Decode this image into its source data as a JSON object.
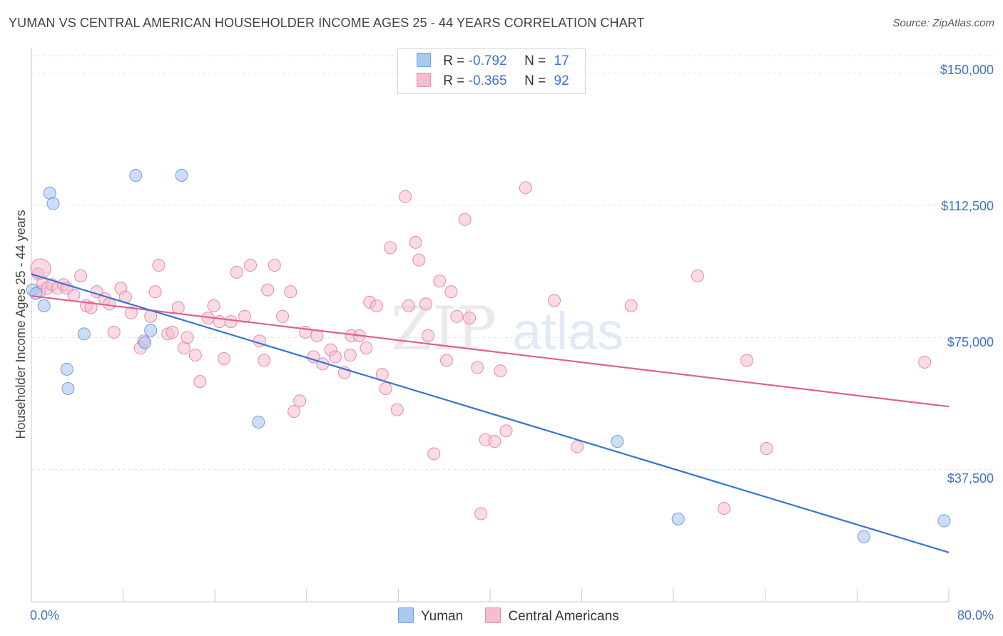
{
  "title": "YUMAN VS CENTRAL AMERICAN HOUSEHOLDER INCOME AGES 25 - 44 YEARS CORRELATION CHART",
  "source": "Source: ZipAtlas.com",
  "watermark": {
    "zip": "ZIP",
    "atlas": "atlas"
  },
  "legend": {
    "r_label": "R =",
    "n_label": "N =",
    "yuman": {
      "r": "-0.792",
      "n": "17"
    },
    "central": {
      "r": "-0.365",
      "n": "92"
    }
  },
  "bottom_legend": {
    "yuman": "Yuman",
    "central": "Central Americans"
  },
  "colors": {
    "yuman_fill": "#aac8f0",
    "yuman_stroke": "#6f9fdc",
    "yuman_line": "#3874d0",
    "central_fill": "#f6bcd0",
    "central_stroke": "#e88aa8",
    "central_line": "#e0608c",
    "tick_text": "#3f73c8",
    "grid": "#e4e4e4"
  },
  "chart_data": {
    "type": "scatter",
    "xlabel": "",
    "ylabel": "Householder Income Ages 25 - 44 years",
    "x_tick_labels": [
      "0.0%",
      "80.0%"
    ],
    "y_tick_labels": [
      "$37,500",
      "$75,000",
      "$112,500",
      "$150,000"
    ],
    "xlim": [
      0,
      80
    ],
    "ylim": [
      0,
      155000
    ],
    "y_ticks": [
      37500,
      75000,
      112500,
      150000
    ],
    "grid": true,
    "legend_position": "top-center",
    "series": [
      {
        "name": "Yuman",
        "r": -0.792,
        "n": 17,
        "trend": {
          "x": [
            0,
            80
          ],
          "y": [
            93000,
            14000
          ]
        },
        "points": [
          [
            0.1,
            88500
          ],
          [
            0.4,
            87500
          ],
          [
            1.1,
            84000
          ],
          [
            1.6,
            116000
          ],
          [
            1.9,
            113000
          ],
          [
            3.1,
            66000
          ],
          [
            3.2,
            60500
          ],
          [
            4.6,
            76000
          ],
          [
            9.1,
            121000
          ],
          [
            9.9,
            73500
          ],
          [
            10.4,
            77000
          ],
          [
            13.1,
            121000
          ],
          [
            19.8,
            51000
          ],
          [
            51.1,
            45500
          ],
          [
            56.4,
            23500
          ],
          [
            72.6,
            18500
          ],
          [
            79.6,
            23000
          ]
        ]
      },
      {
        "name": "Central Americans",
        "r": -0.365,
        "n": 92,
        "trend": {
          "x": [
            0,
            80
          ],
          "y": [
            86800,
            55400
          ]
        },
        "points": [
          [
            0.6,
            93000
          ],
          [
            0.7,
            88000
          ],
          [
            1.0,
            90500
          ],
          [
            1.4,
            89000
          ],
          [
            1.8,
            90000
          ],
          [
            2.3,
            89000
          ],
          [
            2.8,
            90000
          ],
          [
            3.1,
            89000
          ],
          [
            3.7,
            87000
          ],
          [
            4.3,
            92500
          ],
          [
            4.8,
            84000
          ],
          [
            5.2,
            83500
          ],
          [
            5.7,
            88000
          ],
          [
            6.4,
            86000
          ],
          [
            6.8,
            84500
          ],
          [
            7.2,
            76500
          ],
          [
            7.8,
            89000
          ],
          [
            8.2,
            86500
          ],
          [
            8.7,
            82000
          ],
          [
            9.5,
            72000
          ],
          [
            9.8,
            74000
          ],
          [
            10.4,
            81000
          ],
          [
            10.8,
            88000
          ],
          [
            11.1,
            95500
          ],
          [
            11.9,
            76000
          ],
          [
            12.3,
            76500
          ],
          [
            12.8,
            83500
          ],
          [
            13.3,
            72000
          ],
          [
            13.6,
            75000
          ],
          [
            14.3,
            70000
          ],
          [
            14.7,
            62500
          ],
          [
            15.4,
            80500
          ],
          [
            15.9,
            84000
          ],
          [
            16.4,
            79500
          ],
          [
            16.8,
            69000
          ],
          [
            17.4,
            79500
          ],
          [
            17.9,
            93500
          ],
          [
            18.6,
            81000
          ],
          [
            19.1,
            95500
          ],
          [
            19.9,
            74000
          ],
          [
            20.3,
            68500
          ],
          [
            20.6,
            88500
          ],
          [
            21.2,
            95500
          ],
          [
            21.9,
            81000
          ],
          [
            22.6,
            88000
          ],
          [
            22.9,
            54000
          ],
          [
            23.4,
            57000
          ],
          [
            23.9,
            76500
          ],
          [
            24.6,
            69500
          ],
          [
            24.9,
            75500
          ],
          [
            25.4,
            67500
          ],
          [
            26.1,
            71500
          ],
          [
            26.5,
            69500
          ],
          [
            27.3,
            65000
          ],
          [
            27.8,
            70000
          ],
          [
            27.9,
            75500
          ],
          [
            28.6,
            75500
          ],
          [
            29.2,
            72000
          ],
          [
            29.5,
            85000
          ],
          [
            30.1,
            84000
          ],
          [
            30.6,
            64500
          ],
          [
            30.9,
            60500
          ],
          [
            31.3,
            100500
          ],
          [
            31.9,
            54500
          ],
          [
            32.6,
            115000
          ],
          [
            32.9,
            84000
          ],
          [
            33.5,
            102000
          ],
          [
            33.8,
            97000
          ],
          [
            34.4,
            84500
          ],
          [
            34.6,
            75500
          ],
          [
            35.1,
            42000
          ],
          [
            35.6,
            91000
          ],
          [
            36.2,
            68500
          ],
          [
            36.6,
            88000
          ],
          [
            37.1,
            81000
          ],
          [
            37.8,
            108500
          ],
          [
            38.2,
            80500
          ],
          [
            38.9,
            66500
          ],
          [
            39.2,
            25000
          ],
          [
            39.6,
            46000
          ],
          [
            40.4,
            45500
          ],
          [
            40.9,
            65500
          ],
          [
            41.4,
            48500
          ],
          [
            43.1,
            117500
          ],
          [
            45.6,
            85500
          ],
          [
            47.6,
            44000
          ],
          [
            52.3,
            84000
          ],
          [
            58.1,
            92500
          ],
          [
            60.4,
            26500
          ],
          [
            62.4,
            68500
          ],
          [
            64.1,
            43500
          ],
          [
            77.9,
            68000
          ]
        ]
      }
    ]
  }
}
